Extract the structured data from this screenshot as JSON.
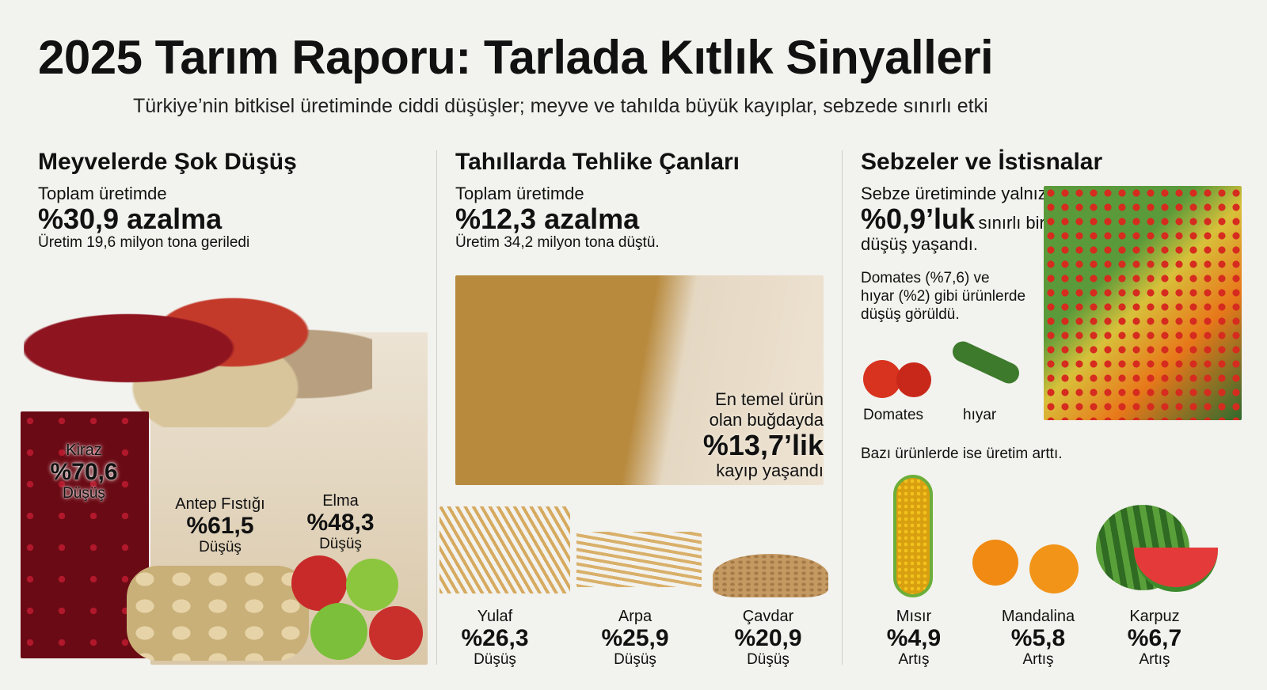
{
  "header": {
    "title": "2025 Tarım Raporu: Tarlada Kıtlık Sinyalleri",
    "subtitle": "Türkiye’nin bitkisel üretiminde ciddi düşüşler; meyve ve tahılda büyük kayıplar, sebzede sınırlı etki"
  },
  "fruits": {
    "heading": "Meyvelerde Şok Düşüş",
    "lead": "Toplam üretimde",
    "value": "%30,9 azalma",
    "note": "Üretim 19,6 milyon tona geriledi",
    "items": [
      {
        "label": "Kiraz",
        "value": "%70,6",
        "change": "Düşüş"
      },
      {
        "label": "Antep Fıstığı",
        "value": "%61,5",
        "change": "Düşüş"
      },
      {
        "label": "Elma",
        "value": "%48,3",
        "change": "Düşüş"
      }
    ]
  },
  "grains": {
    "heading": "Tahıllarda Tehlike Çanları",
    "lead": "Toplam üretimde",
    "value": "%12,3 azalma",
    "note": "Üretim 34,2 milyon tona düştü.",
    "wheat": {
      "line1": "En temel ürün",
      "line2": "olan buğdayda",
      "value": "%13,7’lik",
      "line3": "kayıp yaşandı"
    },
    "items": [
      {
        "label": "Yulaf",
        "value": "%26,3",
        "change": "Düşüş"
      },
      {
        "label": "Arpa",
        "value": "%25,9",
        "change": "Düşüş"
      },
      {
        "label": "Çavdar",
        "value": "%20,9",
        "change": "Düşüş"
      }
    ]
  },
  "vegetables": {
    "heading": "Sebzeler ve İstisnalar",
    "lead": "Sebze üretiminde yalnızca",
    "value": "%0,9’luk",
    "value_suffix": "sınırlı bir",
    "line3": "düşüş yaşandı.",
    "detail": [
      "Domates (%7,6) ve",
      "hıyar (%2) gibi ürünlerde",
      "düşüş görüldü."
    ],
    "small_items": [
      "Domates",
      "hıyar"
    ],
    "increase_note": "Bazı ürünlerde ise üretim arttı.",
    "items": [
      {
        "label": "Mısır",
        "value": "%4,9",
        "change": "Artış"
      },
      {
        "label": "Mandalina",
        "value": "%5,8",
        "change": "Artış"
      },
      {
        "label": "Karpuz",
        "value": "%6,7",
        "change": "Artış"
      }
    ]
  }
}
